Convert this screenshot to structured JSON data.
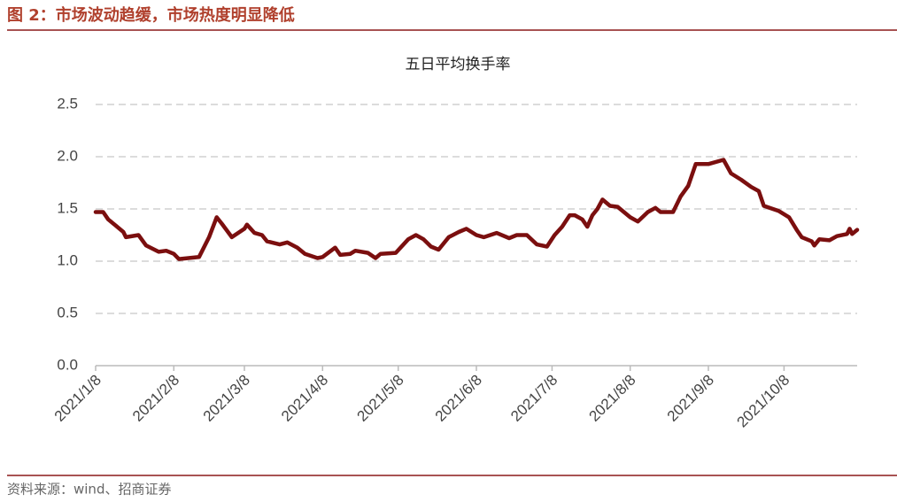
{
  "caption": "图 2：市场波动趋缓，市场热度明显降低",
  "source": "资料来源：wind、招商证券",
  "chart_data": {
    "type": "line",
    "title": "五日平均换手率",
    "color": "#7b0f0f",
    "grid": true,
    "x": [
      "2021/1/8",
      "2021/1/11",
      "2021/1/13",
      "2021/1/16",
      "2021/1/19",
      "2021/1/20",
      "2021/1/25",
      "2021/1/28",
      "2021/2/2",
      "2021/2/5",
      "2021/2/8",
      "2021/2/10",
      "2021/2/18",
      "2021/2/22",
      "2021/2/25",
      "2021/2/27",
      "2021/3/3",
      "2021/3/8",
      "2021/3/9",
      "2021/3/12",
      "2021/3/15",
      "2021/3/17",
      "2021/3/22",
      "2021/3/25",
      "2021/3/29",
      "2021/4/1",
      "2021/4/6",
      "2021/4/8",
      "2021/4/13",
      "2021/4/15",
      "2021/4/19",
      "2021/4/21",
      "2021/4/26",
      "2021/4/29",
      "2021/5/1",
      "2021/5/7",
      "2021/5/12",
      "2021/5/15",
      "2021/5/18",
      "2021/5/21",
      "2021/5/24",
      "2021/5/28",
      "2021/6/1",
      "2021/6/4",
      "2021/6/8",
      "2021/6/11",
      "2021/6/16",
      "2021/6/21",
      "2021/6/24",
      "2021/6/28",
      "2021/7/2",
      "2021/7/6",
      "2021/7/9",
      "2021/7/12",
      "2021/7/15",
      "2021/7/17",
      "2021/7/20",
      "2021/7/22",
      "2021/7/24",
      "2021/7/26",
      "2021/7/28",
      "2021/7/31",
      "2021/8/3",
      "2021/8/8",
      "2021/8/11",
      "2021/8/15",
      "2021/8/18",
      "2021/8/20",
      "2021/8/25",
      "2021/8/28",
      "2021/8/31",
      "2021/9/3",
      "2021/9/8",
      "2021/9/14",
      "2021/9/17",
      "2021/9/21",
      "2021/9/25",
      "2021/9/28",
      "2021/9/30",
      "2021/10/6",
      "2021/10/10",
      "2021/10/13",
      "2021/10/15",
      "2021/10/19",
      "2021/10/20",
      "2021/10/22",
      "2021/10/26",
      "2021/10/29",
      "2021/11/2",
      "2021/11/3",
      "2021/11/4",
      "2021/11/6"
    ],
    "values": [
      1.47,
      1.47,
      1.4,
      1.34,
      1.28,
      1.23,
      1.25,
      1.15,
      1.09,
      1.1,
      1.07,
      1.02,
      1.04,
      1.23,
      1.42,
      1.36,
      1.23,
      1.31,
      1.35,
      1.27,
      1.25,
      1.19,
      1.16,
      1.18,
      1.13,
      1.07,
      1.03,
      1.04,
      1.13,
      1.06,
      1.07,
      1.1,
      1.08,
      1.03,
      1.07,
      1.08,
      1.21,
      1.25,
      1.21,
      1.14,
      1.11,
      1.23,
      1.28,
      1.31,
      1.25,
      1.23,
      1.27,
      1.22,
      1.25,
      1.25,
      1.16,
      1.14,
      1.25,
      1.33,
      1.44,
      1.44,
      1.4,
      1.33,
      1.44,
      1.5,
      1.59,
      1.53,
      1.52,
      1.42,
      1.38,
      1.47,
      1.51,
      1.47,
      1.47,
      1.62,
      1.72,
      1.93,
      1.93,
      1.97,
      1.84,
      1.78,
      1.71,
      1.67,
      1.53,
      1.48,
      1.42,
      1.3,
      1.23,
      1.19,
      1.15,
      1.21,
      1.2,
      1.24,
      1.26,
      1.31,
      1.26,
      1.3
    ],
    "xlim": [
      "2021/1/8",
      "2021/11/6"
    ],
    "xticks": [
      "2021/1/8",
      "2021/2/8",
      "2021/3/8",
      "2021/4/8",
      "2021/5/8",
      "2021/6/8",
      "2021/7/8",
      "2021/8/8",
      "2021/9/8",
      "2021/10/8"
    ],
    "ylim": [
      0,
      2.5
    ],
    "yticks": [
      {
        "value": 0,
        "label": "0.0"
      },
      0.5,
      {
        "value": 1,
        "label": "1.0"
      },
      1.5,
      {
        "value": 2,
        "label": "2.0"
      },
      2.5
    ]
  }
}
